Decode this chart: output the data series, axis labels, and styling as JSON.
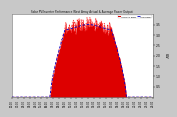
{
  "title": "Solar PV/Inverter Performance West Array Actual & Average Power Output",
  "bg_color": "#c8c8c8",
  "plot_bg_color": "#ffffff",
  "bar_color": "#dd0000",
  "avg_line_color": "#0000cc",
  "grid_color": "#ffffff",
  "num_points": 288,
  "peak_value": 3.5,
  "flat_top_value": 3.2,
  "ylim": [
    0,
    4.0
  ],
  "xlim": [
    0,
    288
  ],
  "legend_actual": "ACTUAL PWR",
  "legend_avg": "AVG PWR",
  "ylabel": "kW",
  "yticks": [
    0.5,
    1.0,
    1.5,
    2.0,
    2.5,
    3.0,
    3.5
  ],
  "ytick_labels": [
    "0.5",
    "1.0",
    "1.5",
    "2.0",
    "2.5",
    "3.0",
    "3.5"
  ]
}
